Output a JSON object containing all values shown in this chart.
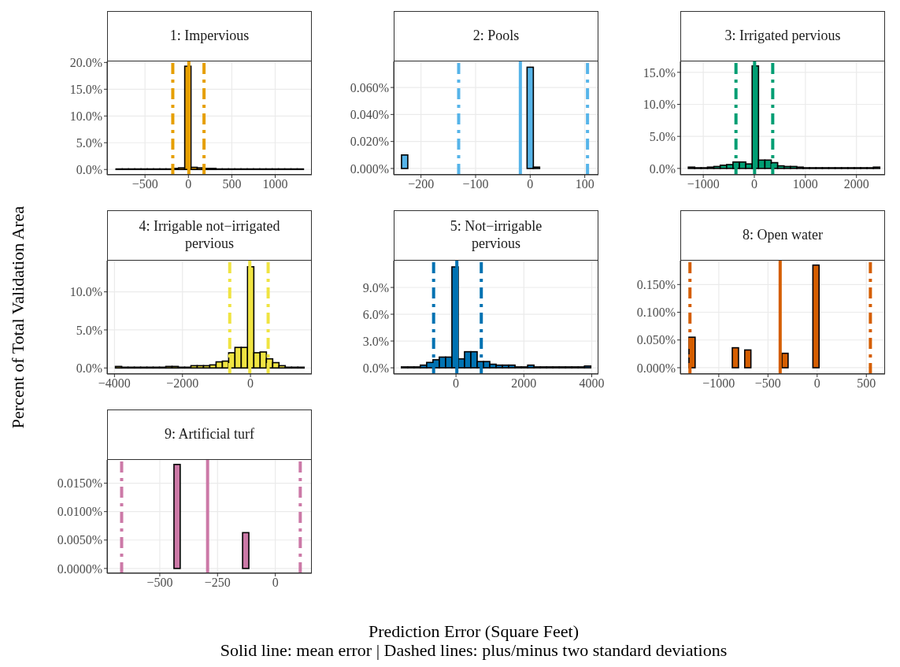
{
  "chart_data": [
    {
      "type": "histogram",
      "title": "1: Impervious",
      "color": "#e69f00",
      "grid": true,
      "ylabel": "Percent of Total Validation Area",
      "xlabel": "Prediction Error (Square Feet)",
      "annotations": [
        "Solid line: mean error | Dashed lines: plus/minus two standard deviations"
      ],
      "bins": [
        -830,
        -758,
        -686,
        -614,
        -542,
        -470,
        -398,
        -326,
        -254,
        -182,
        -110,
        -38,
        34,
        106,
        178,
        250,
        322,
        394,
        466,
        538,
        610,
        682,
        754,
        826,
        898,
        970,
        1042,
        1114,
        1186,
        1258,
        1330
      ],
      "values": [
        0.1,
        0.1,
        0.1,
        0.1,
        0.1,
        0.1,
        0.1,
        0.1,
        0.1,
        0.2,
        0.3,
        19.3,
        0.4,
        0.3,
        0.2,
        0.2,
        0.1,
        0.1,
        0.1,
        0.1,
        0.1,
        0.1,
        0.1,
        0.1,
        0.1,
        0.1,
        0.1,
        0.1,
        0.1,
        0.1
      ],
      "xlim": [
        -937,
        1422
      ],
      "xticks": [
        {
          "value": -500,
          "label": "−500"
        },
        0,
        500,
        1000
      ],
      "ylim": [
        -1.0,
        20.2
      ],
      "yticks": [
        {
          "value": 0,
          "label": "0.0%"
        },
        {
          "value": 5,
          "label": "5.0%"
        },
        {
          "value": 10,
          "label": "10.0%"
        },
        {
          "value": 15,
          "label": "15.0%"
        },
        {
          "value": 20,
          "label": "20.0%"
        }
      ],
      "ref_lines": [
        {
          "axis": "x",
          "value": 5,
          "color": "#e69f00",
          "line_style": "solid"
        },
        {
          "axis": "x",
          "value": -180,
          "color": "#e69f00",
          "line_style": "dashed"
        },
        {
          "axis": "x",
          "value": 180,
          "color": "#e69f00",
          "line_style": "dashed"
        }
      ]
    },
    {
      "type": "histogram",
      "title": "2: Pools",
      "color": "#56b4e9",
      "grid": true,
      "bins": [
        -235,
        -223.5,
        -212,
        -200.5,
        -189,
        -177.5,
        -166,
        -154.5,
        -143,
        -131.5,
        -120,
        -108.5,
        -97,
        -85.5,
        -74,
        -62.5,
        -51,
        -39.5,
        -28,
        -16.5,
        -5,
        6.5,
        18,
        29.5,
        41,
        52.5,
        64,
        75.5,
        87,
        98.5,
        110
      ],
      "values": [
        0.01,
        0,
        0,
        0,
        0,
        0,
        0,
        0,
        0,
        0,
        0,
        0,
        0,
        0,
        0,
        0,
        0,
        0,
        0,
        0,
        0.075,
        0.001,
        0,
        0,
        0,
        0,
        0,
        0,
        0,
        0
      ],
      "xlim": [
        -250,
        125
      ],
      "xticks": [
        {
          "value": -200,
          "label": "−200"
        },
        {
          "value": -100,
          "label": "−100"
        },
        0,
        100
      ],
      "ylim": [
        -0.0047,
        0.0793
      ],
      "yticks": [
        {
          "value": 0,
          "label": "0.000%"
        },
        {
          "value": 0.02,
          "label": "0.020%"
        },
        {
          "value": 0.04,
          "label": "0.040%"
        },
        {
          "value": 0.06,
          "label": "0.060%"
        }
      ],
      "ref_lines": [
        {
          "axis": "x",
          "value": -18,
          "color": "#56b4e9",
          "line_style": "solid"
        },
        {
          "axis": "x",
          "value": -131,
          "color": "#56b4e9",
          "line_style": "dashed"
        },
        {
          "axis": "x",
          "value": 105,
          "color": "#56b4e9",
          "line_style": "dashed"
        }
      ]
    },
    {
      "type": "histogram",
      "title": "3: Irrigated pervious",
      "color": "#009e73",
      "grid": true,
      "bins": [
        -1300,
        -1175,
        -1050,
        -925,
        -800,
        -675,
        -550,
        -425,
        -300,
        -175,
        -50,
        75,
        200,
        325,
        450,
        575,
        700,
        825,
        950,
        1075,
        1200,
        1325,
        1450,
        1575,
        1700,
        1825,
        1950,
        2075,
        2200,
        2325,
        2450
      ],
      "values": [
        0.2,
        0.1,
        0.1,
        0.2,
        0.3,
        0.5,
        0.6,
        1.0,
        1.0,
        0.7,
        16.0,
        1.3,
        1.3,
        0.9,
        0.4,
        0.3,
        0.3,
        0.2,
        0.1,
        0.1,
        0.1,
        0.1,
        0.1,
        0.1,
        0.1,
        0.1,
        0.1,
        0.1,
        0.1,
        0.2
      ],
      "xlim": [
        -1450,
        2560
      ],
      "xticks": [
        {
          "value": -1000,
          "label": "−1000"
        },
        0,
        1000,
        2000
      ],
      "ylim": [
        -1.0,
        16.7
      ],
      "yticks": [
        {
          "value": 0,
          "label": "0.0%"
        },
        {
          "value": 5,
          "label": "5.0%"
        },
        {
          "value": 10,
          "label": "10.0%"
        },
        {
          "value": 15,
          "label": "15.0%"
        }
      ],
      "ref_lines": [
        {
          "axis": "x",
          "value": 5,
          "color": "#009e73",
          "line_style": "solid"
        },
        {
          "axis": "x",
          "value": -360,
          "color": "#009e73",
          "line_style": "dashed"
        },
        {
          "axis": "x",
          "value": 360,
          "color": "#009e73",
          "line_style": "dashed"
        }
      ]
    },
    {
      "type": "histogram",
      "title": "4: Irrigable not−irrigated\npervious",
      "color": "#f0e442",
      "grid": true,
      "bins": [
        -3960,
        -3775,
        -3590,
        -3405,
        -3220,
        -3035,
        -2850,
        -2665,
        -2480,
        -2295,
        -2110,
        -1925,
        -1740,
        -1555,
        -1370,
        -1185,
        -1000,
        -815,
        -630,
        -445,
        -260,
        -75,
        110,
        295,
        480,
        665,
        850,
        1035,
        1220,
        1405,
        1590
      ],
      "values": [
        0.2,
        0.1,
        0.1,
        0.1,
        0.1,
        0.1,
        0.1,
        0.1,
        0.2,
        0.2,
        0.1,
        0.1,
        0.3,
        0.3,
        0.3,
        0.4,
        0.8,
        0.9,
        2.0,
        2.7,
        2.7,
        13.3,
        2.0,
        2.1,
        1.2,
        0.7,
        0.3,
        0.1,
        0.1,
        0.1
      ],
      "xlim": [
        -4217,
        1804
      ],
      "xticks": [
        {
          "value": -4000,
          "label": "−4000"
        },
        {
          "value": -2000,
          "label": "−2000"
        },
        0
      ],
      "ylim": [
        -0.8,
        14.1
      ],
      "yticks": [
        {
          "value": 0,
          "label": "0.0%"
        },
        {
          "value": 5,
          "label": "5.0%"
        },
        {
          "value": 10,
          "label": "10.0%"
        }
      ],
      "ref_lines": [
        {
          "axis": "x",
          "value": -20,
          "color": "#f0e442",
          "line_style": "solid"
        },
        {
          "axis": "x",
          "value": -610,
          "color": "#f0e442",
          "line_style": "dashed"
        },
        {
          "axis": "x",
          "value": 520,
          "color": "#f0e442",
          "line_style": "dashed"
        }
      ]
    },
    {
      "type": "histogram",
      "title": "5: Not−irrigable\npervious",
      "color": "#0072b2",
      "grid": true,
      "bins": [
        -1620,
        -1434,
        -1248,
        -1062,
        -876,
        -690,
        -504,
        -318,
        -132,
        54,
        240,
        426,
        612,
        798,
        984,
        1170,
        1356,
        1542,
        1728,
        1914,
        2100,
        2286,
        2472,
        2658,
        2844,
        3030,
        3216,
        3402,
        3588,
        3774,
        3960
      ],
      "values": [
        0.1,
        0.1,
        0.1,
        0.3,
        0.6,
        0.9,
        1.2,
        1.2,
        11.3,
        1.0,
        1.8,
        1.8,
        0.7,
        0.7,
        0.4,
        0.3,
        0.3,
        0.3,
        0.1,
        0.1,
        0.3,
        0.1,
        0.1,
        0.1,
        0.1,
        0.1,
        0.1,
        0.1,
        0.1,
        0.2
      ],
      "xlim": [
        -1836,
        4197
      ],
      "xticks": [
        0,
        2000,
        4000
      ],
      "ylim": [
        -0.7,
        12.0
      ],
      "yticks": [
        {
          "value": 0,
          "label": "0.0%"
        },
        {
          "value": 3,
          "label": "3.0%"
        },
        {
          "value": 6,
          "label": "6.0%"
        },
        {
          "value": 9,
          "label": "9.0%"
        }
      ],
      "ref_lines": [
        {
          "axis": "x",
          "value": 25,
          "color": "#0072b2",
          "line_style": "solid"
        },
        {
          "axis": "x",
          "value": -660,
          "color": "#0072b2",
          "line_style": "dashed"
        },
        {
          "axis": "x",
          "value": 745,
          "color": "#0072b2",
          "line_style": "dashed"
        }
      ]
    },
    {
      "type": "histogram",
      "title": "8: Open water",
      "color": "#d55e00",
      "grid": true,
      "bins": [
        -1300,
        -1237,
        -1174,
        -1111,
        -1048,
        -985,
        -922,
        -859,
        -796,
        -733,
        -670,
        -607,
        -544,
        -481,
        -418,
        -355,
        -292,
        -229,
        -166,
        -103,
        -40,
        23,
        86,
        149,
        212,
        275,
        338,
        401,
        464,
        527,
        590
      ],
      "values": [
        0.055,
        0,
        0,
        0,
        0,
        0,
        0,
        0.036,
        0,
        0.032,
        0,
        0,
        0,
        0,
        0,
        0.026,
        0,
        0,
        0,
        0,
        0.185,
        0,
        0,
        0,
        0,
        0,
        0,
        0,
        0,
        0
      ],
      "xlim": [
        -1391,
        690
      ],
      "xticks": [
        {
          "value": -1000,
          "label": "−1000"
        },
        {
          "value": -500,
          "label": "−500"
        },
        0,
        500
      ],
      "ylim": [
        -0.0114,
        0.193
      ],
      "yticks": [
        {
          "value": 0,
          "label": "0.000%"
        },
        {
          "value": 0.05,
          "label": "0.050%"
        },
        {
          "value": 0.1,
          "label": "0.100%"
        },
        {
          "value": 0.15,
          "label": "0.150%"
        }
      ],
      "ref_lines": [
        {
          "axis": "x",
          "value": -376,
          "color": "#d55e00",
          "line_style": "solid"
        },
        {
          "axis": "x",
          "value": -1293,
          "color": "#d55e00",
          "line_style": "dashed"
        },
        {
          "axis": "x",
          "value": 541,
          "color": "#d55e00",
          "line_style": "dashed"
        }
      ]
    },
    {
      "type": "histogram",
      "title": "9: Artificial turf",
      "color": "#cc79a7",
      "grid": true,
      "bins": [
        -680,
        -653,
        -626,
        -599,
        -572,
        -545,
        -518,
        -491,
        -464,
        -437,
        -410,
        -383,
        -356,
        -329,
        -302,
        -275,
        -248,
        -221,
        -194,
        -167,
        -140,
        -113,
        -86,
        -59,
        -32,
        -5,
        22,
        49,
        76,
        103,
        130
      ],
      "values": [
        0,
        0,
        0,
        0,
        0,
        0,
        0,
        0,
        0,
        0.0183,
        0,
        0,
        0,
        0,
        0,
        0,
        0,
        0,
        0,
        0,
        0.0063,
        0,
        0,
        0,
        0,
        0,
        0,
        0,
        0,
        0
      ],
      "xlim": [
        -728,
        158
      ],
      "xticks": [
        {
          "value": -500,
          "label": "−500"
        },
        {
          "value": -250,
          "label": "−250"
        },
        0
      ],
      "ylim": [
        -0.00085,
        0.0191
      ],
      "yticks": [
        {
          "value": 0,
          "label": "0.0000%"
        },
        {
          "value": 0.005,
          "label": "0.0050%"
        },
        {
          "value": 0.01,
          "label": "0.0100%"
        },
        {
          "value": 0.015,
          "label": "0.0150%"
        }
      ],
      "ref_lines": [
        {
          "axis": "x",
          "value": -293,
          "color": "#cc79a7",
          "line_style": "solid"
        },
        {
          "axis": "x",
          "value": -665,
          "color": "#cc79a7",
          "line_style": "dashed"
        },
        {
          "axis": "x",
          "value": 108,
          "color": "#cc79a7",
          "line_style": "dashed"
        }
      ]
    }
  ]
}
